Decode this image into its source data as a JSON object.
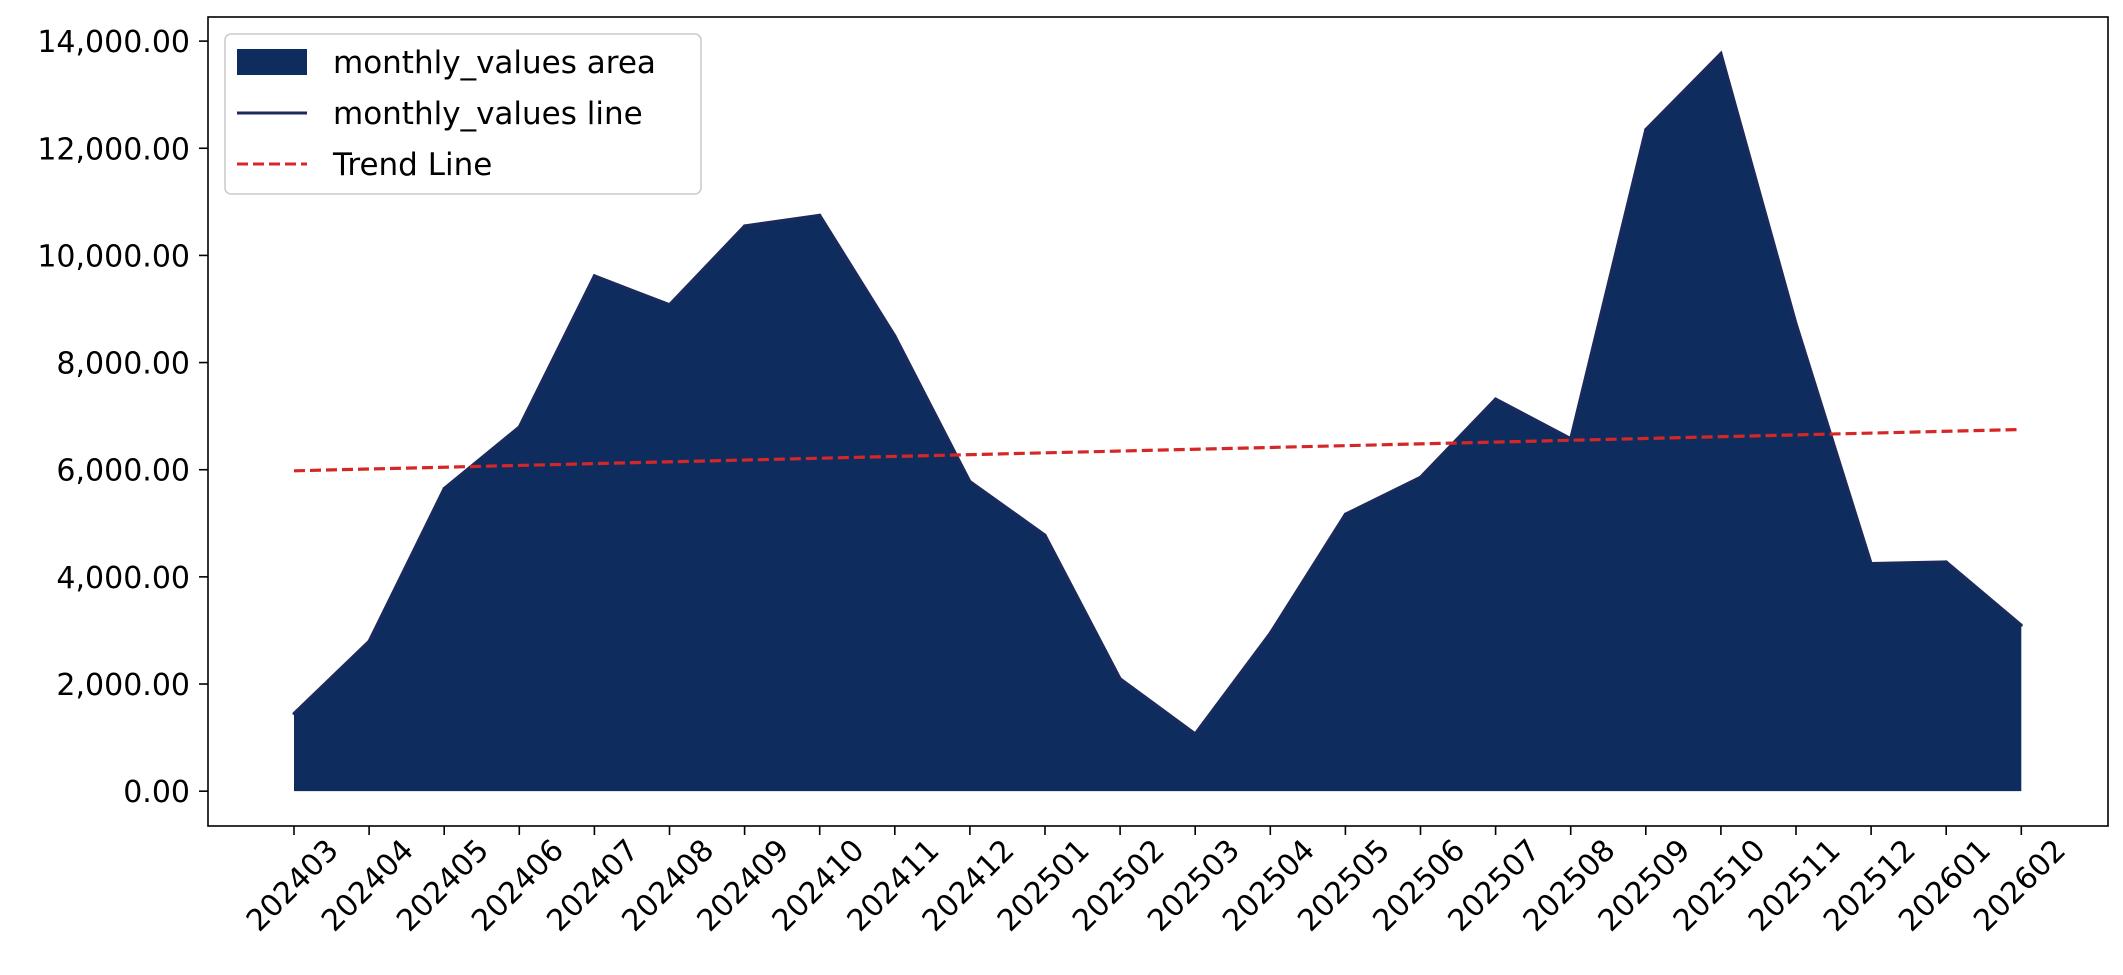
{
  "chart_data": {
    "type": "area",
    "title": "",
    "xlabel": "",
    "ylabel": "",
    "categories": [
      "202403",
      "202404",
      "202405",
      "202406",
      "202407",
      "202408",
      "202409",
      "202410",
      "202411",
      "202412",
      "202501",
      "202502",
      "202503",
      "202504",
      "202505",
      "202506",
      "202507",
      "202508",
      "202509",
      "202510",
      "202511",
      "202512",
      "202601",
      "202602"
    ],
    "series": [
      {
        "name": "monthly_values",
        "values": [
          1450,
          2800,
          5650,
          6800,
          9620,
          9080,
          10550,
          10750,
          8500,
          5780,
          4780,
          2100,
          1070,
          2950,
          5170,
          5860,
          7320,
          6580,
          12350,
          13770,
          8730,
          4250,
          4280,
          3100
        ]
      }
    ],
    "trend": {
      "start": 5980,
      "end": 6750
    },
    "ylim": [
      -650,
      14450
    ],
    "yticks": [
      0,
      2000,
      4000,
      6000,
      8000,
      10000,
      12000,
      14000
    ],
    "ytick_labels": [
      "0.00",
      "2,000.00",
      "4,000.00",
      "6,000.00",
      "8,000.00",
      "10,000.00",
      "12,000.00",
      "14,000.00"
    ],
    "grid": false,
    "legend": {
      "position": "top-left",
      "entries": [
        "monthly_values area",
        "monthly_values line",
        "Trend Line"
      ]
    },
    "colors": {
      "area": "#0e2d5e",
      "line": "#1a2a5c",
      "trend": "#d62728"
    }
  }
}
